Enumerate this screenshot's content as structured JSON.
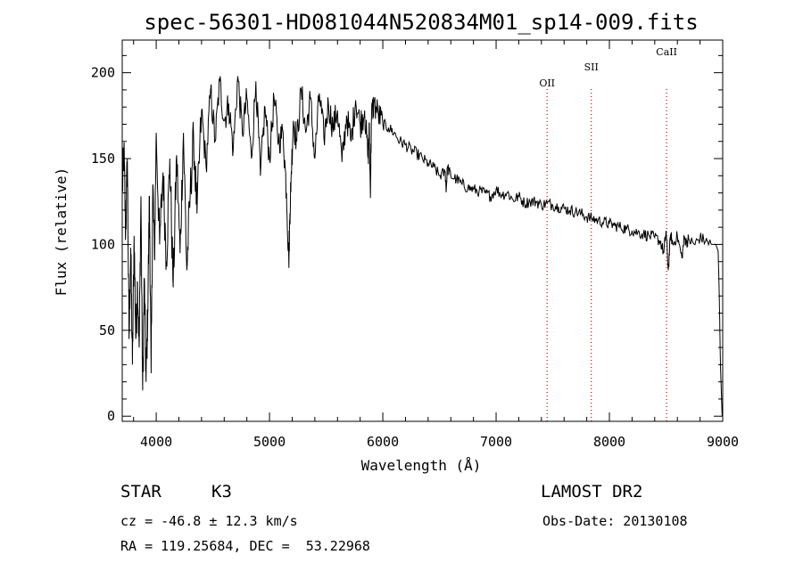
{
  "chart_data": {
    "type": "line",
    "title": "spec-56301-HD081044N520834M01_sp14-009.fits",
    "xlabel": "Wavelength (Å)",
    "ylabel": "Flux (relative)",
    "xlim": [
      3700,
      9000
    ],
    "ylim": [
      -3,
      219
    ],
    "x_ticks": [
      4000,
      5000,
      6000,
      7000,
      8000,
      9000
    ],
    "y_ticks": [
      0,
      50,
      100,
      150,
      200
    ],
    "grid": false,
    "line_color": "#000000",
    "marker_color": "#cc0000",
    "spectral_lines": [
      {
        "label": "OII",
        "x": 7450
      },
      {
        "label": "SII",
        "x": 7840
      },
      {
        "label": "CaII",
        "x": 8505
      }
    ],
    "series": [
      {
        "x": [
          3700,
          3715,
          3730,
          3745,
          3760,
          3775,
          3790,
          3805,
          3820,
          3835,
          3850,
          3865,
          3880,
          3895,
          3910,
          3925,
          3940,
          3955,
          3970,
          3985,
          4000,
          4030,
          4060,
          4090,
          4120,
          4150,
          4180,
          4210,
          4240,
          4270,
          4300,
          4330,
          4360,
          4400,
          4440,
          4480,
          4520,
          4560,
          4600,
          4640,
          4680,
          4720,
          4760,
          4800,
          4840,
          4880,
          4920,
          4960,
          5000,
          5040,
          5080,
          5120,
          5150,
          5170,
          5180,
          5190,
          5210,
          5240,
          5280,
          5320,
          5360,
          5400,
          5440,
          5480,
          5520,
          5560,
          5600,
          5640,
          5680,
          5720,
          5760,
          5800,
          5840,
          5870,
          5880,
          5890,
          5900,
          5920,
          5960,
          6000,
          6050,
          6100,
          6150,
          6200,
          6250,
          6300,
          6350,
          6400,
          6450,
          6500,
          6550,
          6560,
          6570,
          6600,
          6650,
          6700,
          6750,
          6800,
          6850,
          6900,
          6950,
          7000,
          7050,
          7100,
          7150,
          7200,
          7250,
          7300,
          7350,
          7400,
          7450,
          7500,
          7550,
          7600,
          7650,
          7700,
          7750,
          7800,
          7850,
          7900,
          7950,
          8000,
          8050,
          8100,
          8150,
          8200,
          8250,
          8300,
          8350,
          8400,
          8450,
          8480,
          8500,
          8520,
          8540,
          8560,
          8600,
          8640,
          8660,
          8680,
          8700,
          8750,
          8800,
          8850,
          8900,
          8940,
          8960,
          8970,
          8980,
          8990,
          8995
        ],
        "y": [
          130,
          155,
          105,
          150,
          45,
          98,
          30,
          105,
          45,
          78,
          40,
          128,
          15,
          80,
          20,
          60,
          128,
          25,
          135,
          92,
          165,
          100,
          142,
          90,
          150,
          75,
          152,
          95,
          165,
          85,
          130,
          162,
          118,
          178,
          145,
          190,
          160,
          195,
          172,
          182,
          155,
          198,
          165,
          185,
          150,
          195,
          140,
          180,
          150,
          185,
          160,
          165,
          130,
          90,
          118,
          138,
          172,
          160,
          190,
          165,
          185,
          150,
          188,
          162,
          182,
          168,
          178,
          148,
          175,
          160,
          184,
          170,
          178,
          150,
          168,
          130,
          175,
          182,
          176,
          170,
          168,
          165,
          160,
          158,
          155,
          153,
          150,
          147,
          145,
          140,
          142,
          132,
          145,
          140,
          138,
          135,
          133,
          132,
          131,
          130,
          128,
          132,
          129,
          130,
          126,
          128,
          124,
          125,
          125,
          123,
          124,
          123,
          122,
          121,
          120,
          119,
          118,
          116,
          115,
          114,
          113,
          112,
          111,
          110,
          109,
          108,
          107,
          106,
          105,
          104,
          102,
          95,
          108,
          85,
          106,
          100,
          105,
          92,
          104,
          101,
          103,
          100,
          104,
          102,
          100,
          100,
          96,
          70,
          30,
          10,
          0
        ]
      }
    ]
  },
  "info": {
    "object_class": "STAR",
    "subclass": "K3",
    "survey": "LAMOST DR2",
    "redshift": "cz = -46.8 ± 12.3 km/s",
    "obs_date": "Obs-Date: 20130108",
    "coords": "RA = 119.25684, DEC =  53.22968"
  }
}
